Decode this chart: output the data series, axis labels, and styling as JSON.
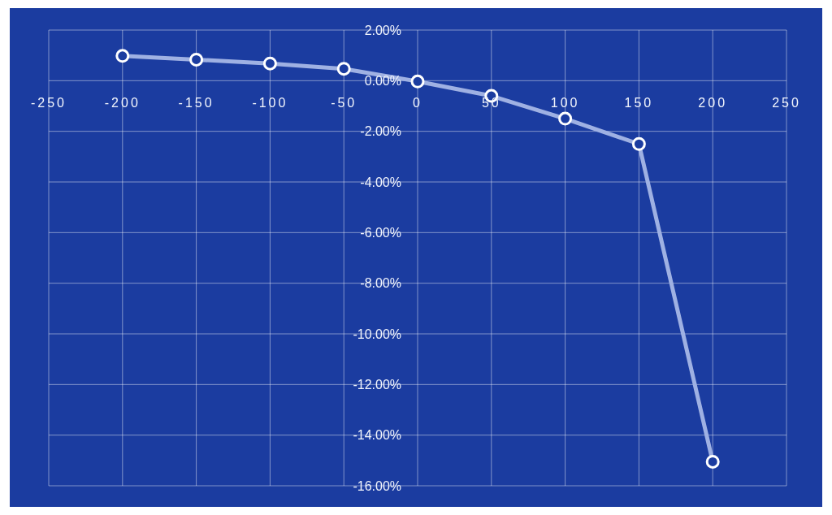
{
  "chart_data": {
    "type": "line",
    "x": [
      -200,
      -150,
      -100,
      -50,
      0,
      50,
      100,
      150,
      200
    ],
    "values": [
      0.98,
      0.83,
      0.68,
      0.47,
      -0.03,
      -0.6,
      -1.5,
      -2.5,
      -15.05
    ],
    "color": "#9fb1e3",
    "xlim": [
      -250,
      250
    ],
    "xticks": [
      -250,
      -200,
      -150,
      -100,
      -50,
      0,
      50,
      100,
      150,
      200,
      250
    ],
    "ylim": [
      -16,
      2
    ],
    "yticks": [
      {
        "value": 2,
        "label": "2.00%"
      },
      {
        "value": 0,
        "label": "0.00%"
      },
      {
        "value": -2,
        "label": "-2.00%"
      },
      {
        "value": -4,
        "label": "-4.00%"
      },
      {
        "value": -6,
        "label": "-6.00%"
      },
      {
        "value": -8,
        "label": "-8.00%"
      },
      {
        "value": -10,
        "label": "-10.00%"
      },
      {
        "value": -12,
        "label": "-12.00%"
      },
      {
        "value": -14,
        "label": "-14.00%"
      },
      {
        "value": -16,
        "label": "-16.00%"
      }
    ],
    "grid": true,
    "marker": "circle",
    "line_style": "solid"
  }
}
